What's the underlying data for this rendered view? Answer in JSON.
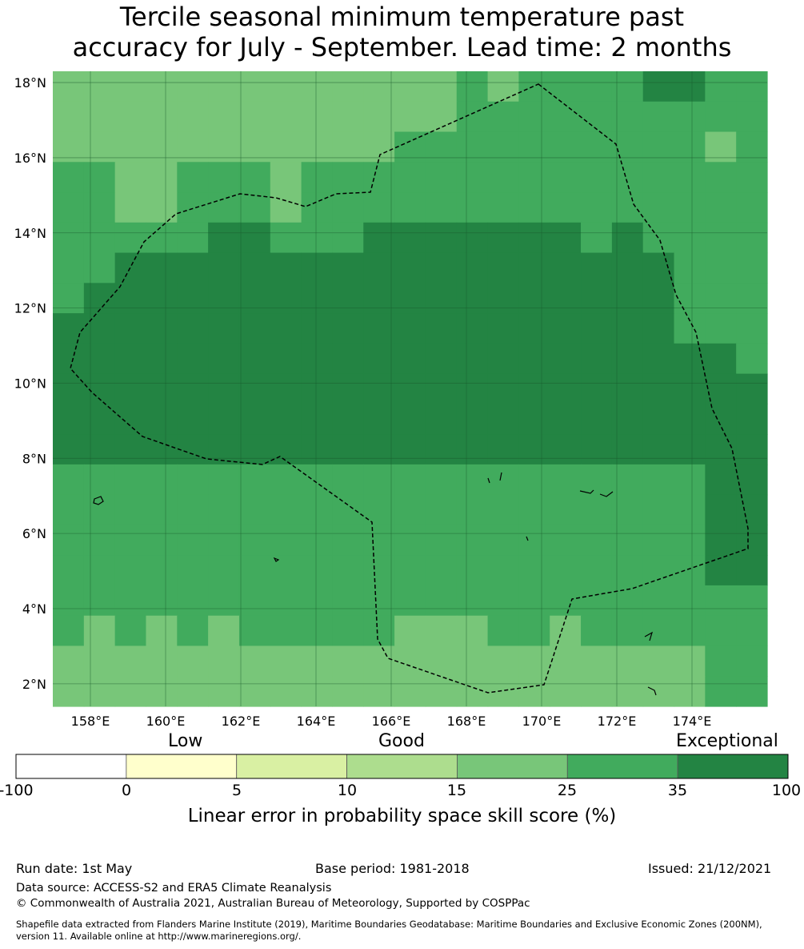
{
  "title_line1": "Tercile seasonal minimum temperature past",
  "title_line2": "accuracy for July - September. Lead time: 2 months",
  "map": {
    "lon_labels": [
      "158°E",
      "160°E",
      "162°E",
      "164°E",
      "166°E",
      "168°E",
      "170°E",
      "172°E",
      "174°E"
    ],
    "lat_labels": [
      "18°N",
      "16°N",
      "14°N",
      "12°N",
      "10°N",
      "8°N",
      "6°N",
      "4°N",
      "2°N"
    ],
    "lon_range": [
      157.0,
      176.0
    ],
    "lat_range": [
      1.4,
      18.3
    ],
    "boundary_style": "dashed",
    "category_colors": [
      "#78c679",
      "#41ab5d",
      "#238443"
    ],
    "grid_cols": 23,
    "grid_rows": 21,
    "grid": [
      "00000000000001011112211",
      "00000000000001111111111",
      "00000000000111111111101",
      "11001110111111111111111",
      "11001110111111111111111",
      "11111221112222222121111",
      "11222222222222222222111",
      "12222222222222222222111",
      "22222222222222222222111",
      "22222222222222222222221",
      "22222222222222222222222",
      "22222222222222222222222",
      "22222222222222222222222",
      "11111111111111111111122",
      "11111111111111111111122",
      "11111111111111111111122",
      "11111111111111111111122",
      "11111111111111111111111",
      "10101011111000110111111",
      "00000000000000000000011",
      "00000000000000000000011"
    ]
  },
  "colorbar": {
    "words": [
      "Low",
      "Good",
      "Exceptional"
    ],
    "ticks": [
      "-100",
      "0",
      "5",
      "10",
      "15",
      "25",
      "35",
      "100"
    ],
    "colors": [
      "#ffffff",
      "#ffffcc",
      "#d9f0a3",
      "#addd8e",
      "#78c679",
      "#41ab5d",
      "#238443"
    ],
    "label": "Linear error in probability space skill score (%)"
  },
  "footer": {
    "run_date": "Run date: 1st May",
    "base_period": "Base period: 1981-2018",
    "issued": "Issued: 21/12/2021",
    "data_source": "Data source: ACCESS-S2 and ERA5 Climate Reanalysis",
    "copyright": "© Commonwealth of Australia 2021, Australian Bureau of Meteorology, Supported by COSPPac",
    "shapefile_line1": "Shapefile data extracted from Flanders Marine Institute (2019), Maritime Boundaries Geodatabase: Maritime Boundaries and Exclusive Economic Zones (200NM),",
    "shapefile_line2": "version 11. Available online at http://www.marineregions.org/."
  }
}
